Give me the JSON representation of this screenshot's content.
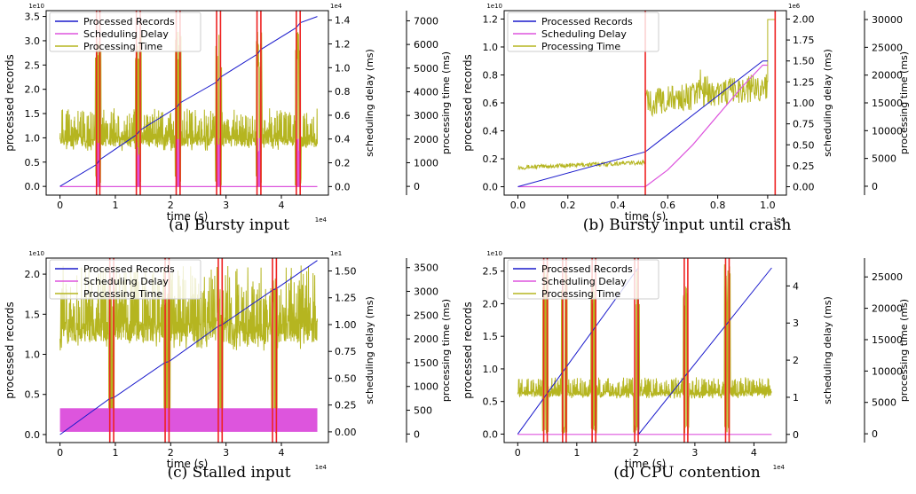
{
  "colors": {
    "processed": "#1a1acc",
    "delay": "#dd55dd",
    "ptime": "#b5b520",
    "marker": "#ee2222",
    "axis": "#000000"
  },
  "chart_data": [
    {
      "id": "a",
      "type": "line",
      "caption": "(a)  Bursty input",
      "xlabel": "time (s)",
      "xmult": "1e4",
      "xlim": [
        -0.25,
        4.85
      ],
      "xticks": [
        0,
        1,
        2,
        3,
        4
      ],
      "y1": {
        "label": "processed records",
        "mult": "1e10",
        "lim": [
          -0.18,
          3.62
        ],
        "ticks": [
          "0.0",
          "0.5",
          "1.0",
          "1.5",
          "2.0",
          "2.5",
          "3.0",
          "3.5"
        ]
      },
      "y2": {
        "label": "scheduling delay (ms)",
        "mult": "1e4",
        "lim": [
          -0.072,
          1.48
        ],
        "ticks": [
          "0.0",
          "0.2",
          "0.4",
          "0.6",
          "0.8",
          "1.0",
          "1.2",
          "1.4"
        ]
      },
      "y3": {
        "label": "processing time (ms)",
        "lim": [
          -370,
          7430
        ],
        "ticks": [
          "0",
          "1000",
          "2000",
          "3000",
          "4000",
          "5000",
          "6000",
          "7000"
        ]
      },
      "legend": [
        "Processed Records",
        "Scheduling Delay",
        "Processing Time"
      ],
      "markers": [
        0.66,
        0.72,
        1.38,
        1.45,
        2.1,
        2.17,
        2.83,
        2.9,
        3.56,
        3.63,
        4.27,
        4.34
      ],
      "processed": [
        [
          0,
          0
        ],
        [
          0.66,
          0.45
        ],
        [
          0.72,
          0.55
        ],
        [
          1.38,
          1.06
        ],
        [
          1.45,
          1.16
        ],
        [
          2.1,
          1.62
        ],
        [
          2.17,
          1.72
        ],
        [
          2.83,
          2.15
        ],
        [
          2.9,
          2.25
        ],
        [
          3.56,
          2.72
        ],
        [
          3.63,
          2.82
        ],
        [
          4.27,
          3.27
        ],
        [
          4.34,
          3.37
        ],
        [
          4.65,
          3.5
        ]
      ],
      "ptime_base": 2400,
      "ptime_noise": 900,
      "ptime_burst": 6600,
      "delay_spikes": [
        [
          0.66,
          0.72
        ],
        [
          1.38,
          1.45
        ],
        [
          2.1,
          2.17
        ],
        [
          2.83,
          2.9
        ],
        [
          3.56,
          3.63
        ],
        [
          4.27,
          4.34
        ]
      ],
      "delay_peak": 0.42
    },
    {
      "id": "b",
      "type": "line",
      "caption": "(b)  Bursty input until crash",
      "xlabel": "time (s)",
      "xmult": "1e4",
      "xlim": [
        -0.055,
        1.075
      ],
      "xticks": [
        0.0,
        0.2,
        0.4,
        0.6,
        0.8,
        1.0
      ],
      "y1": {
        "label": "processed records",
        "mult": "1e10",
        "lim": [
          -0.06,
          1.26
        ],
        "ticks": [
          "0.0",
          "0.2",
          "0.4",
          "0.6",
          "0.8",
          "1.0",
          "1.2"
        ]
      },
      "y2": {
        "label": "scheduling delay (ms)",
        "mult": "1e6",
        "lim": [
          -0.1,
          2.1
        ],
        "ticks": [
          "0.00",
          "0.25",
          "0.50",
          "0.75",
          "1.00",
          "1.25",
          "1.50",
          "1.75",
          "2.00"
        ]
      },
      "y3": {
        "label": "processing time (ms)",
        "lim": [
          -1600,
          31600
        ],
        "ticks": [
          "0",
          "5000",
          "10000",
          "15000",
          "20000",
          "25000",
          "30000"
        ]
      },
      "legend": [
        "Processed Records",
        "Scheduling Delay",
        "Processing Time"
      ],
      "markers": [
        0.51,
        1.03
      ],
      "processed": [
        [
          0,
          0
        ],
        [
          0.51,
          0.25
        ],
        [
          0.98,
          0.9
        ],
        [
          1.0,
          0.9
        ]
      ],
      "delay": [
        [
          0,
          0
        ],
        [
          0.51,
          0
        ],
        [
          0.6,
          0.2
        ],
        [
          0.7,
          0.5
        ],
        [
          0.8,
          0.85
        ],
        [
          0.9,
          1.2
        ],
        [
          0.98,
          1.45
        ],
        [
          1.0,
          1.45
        ]
      ],
      "ptime_segments": [
        [
          0,
          0.51,
          3400,
          4300,
          400
        ],
        [
          0.51,
          1.0,
          15000,
          18000,
          2500
        ]
      ],
      "ptime_hump": [
        0.74,
        21000
      ],
      "ptime_end": 30000
    },
    {
      "id": "c",
      "type": "line",
      "caption": "(c)  Stalled input",
      "xlabel": "time (s)",
      "xmult": "1e4",
      "xlim": [
        -0.25,
        4.85
      ],
      "xticks": [
        0,
        1,
        2,
        3,
        4
      ],
      "y1": {
        "label": "processed records",
        "mult": "1e10",
        "lim": [
          -0.1,
          2.2
        ],
        "ticks": [
          "0.0",
          "0.5",
          "1.0",
          "1.5",
          "2.0"
        ]
      },
      "y2": {
        "label": "scheduling delay (ms)",
        "mult": "1e1",
        "lim": [
          -0.1,
          1.62
        ],
        "ticks": [
          "0.00",
          "0.25",
          "0.50",
          "0.75",
          "1.00",
          "1.25",
          "1.50"
        ]
      },
      "y3": {
        "label": "processing time (ms)",
        "lim": [
          -180,
          3700
        ],
        "ticks": [
          "0",
          "500",
          "1000",
          "1500",
          "2000",
          "2500",
          "3000",
          "3500"
        ]
      },
      "legend": [
        "Processed Records",
        "Scheduling Delay",
        "Processing Time"
      ],
      "markers": [
        0.9,
        0.97,
        1.9,
        1.97,
        2.86,
        2.93,
        3.84,
        3.91
      ],
      "processed": [
        [
          0,
          0
        ],
        [
          0.9,
          0.45
        ],
        [
          0.97,
          0.46
        ],
        [
          1.9,
          0.9
        ],
        [
          1.97,
          0.91
        ],
        [
          2.86,
          1.35
        ],
        [
          2.93,
          1.37
        ],
        [
          3.84,
          1.8
        ],
        [
          3.91,
          1.82
        ],
        [
          4.65,
          2.17
        ]
      ],
      "ptime_base": 2650,
      "ptime_noise": 900,
      "ptime_burst": 3300,
      "delay_band": [
        0.0,
        0.22
      ]
    },
    {
      "id": "d",
      "type": "line",
      "caption": "(d)  CPU contention",
      "xlabel": "time (s)",
      "xmult": "1e4",
      "xlim": [
        -0.23,
        4.55
      ],
      "xticks": [
        0,
        1,
        2,
        3,
        4
      ],
      "y1": {
        "label": "processed records",
        "mult": "1e10",
        "lim": [
          -0.13,
          2.7
        ],
        "ticks": [
          "0.0",
          "0.5",
          "1.0",
          "1.5",
          "2.0",
          "2.5"
        ]
      },
      "y2": {
        "label": "scheduling delay (ms)",
        "lim": [
          -0.22,
          4.75
        ],
        "ticks": [
          "0",
          "1",
          "2",
          "3",
          "4"
        ]
      },
      "y3": {
        "label": "processing time (ms)",
        "lim": [
          -1400,
          28000
        ],
        "ticks": [
          "0",
          "5000",
          "10000",
          "15000",
          "20000",
          "25000"
        ]
      },
      "legend": [
        "Processed Records",
        "Scheduling Delay",
        "Processing Time"
      ],
      "markers": [
        0.44,
        0.5,
        0.76,
        0.82,
        1.26,
        1.32,
        1.98,
        2.04,
        2.82,
        2.88,
        3.52,
        3.58
      ],
      "processed": [
        [
          0,
          0
        ],
        [
          2.04,
          2.55
        ],
        [
          2.05,
          0
        ],
        [
          4.3,
          2.55
        ]
      ],
      "ptime_base": 7300,
      "ptime_noise": 1700,
      "ptime_burst": 27000
    }
  ]
}
